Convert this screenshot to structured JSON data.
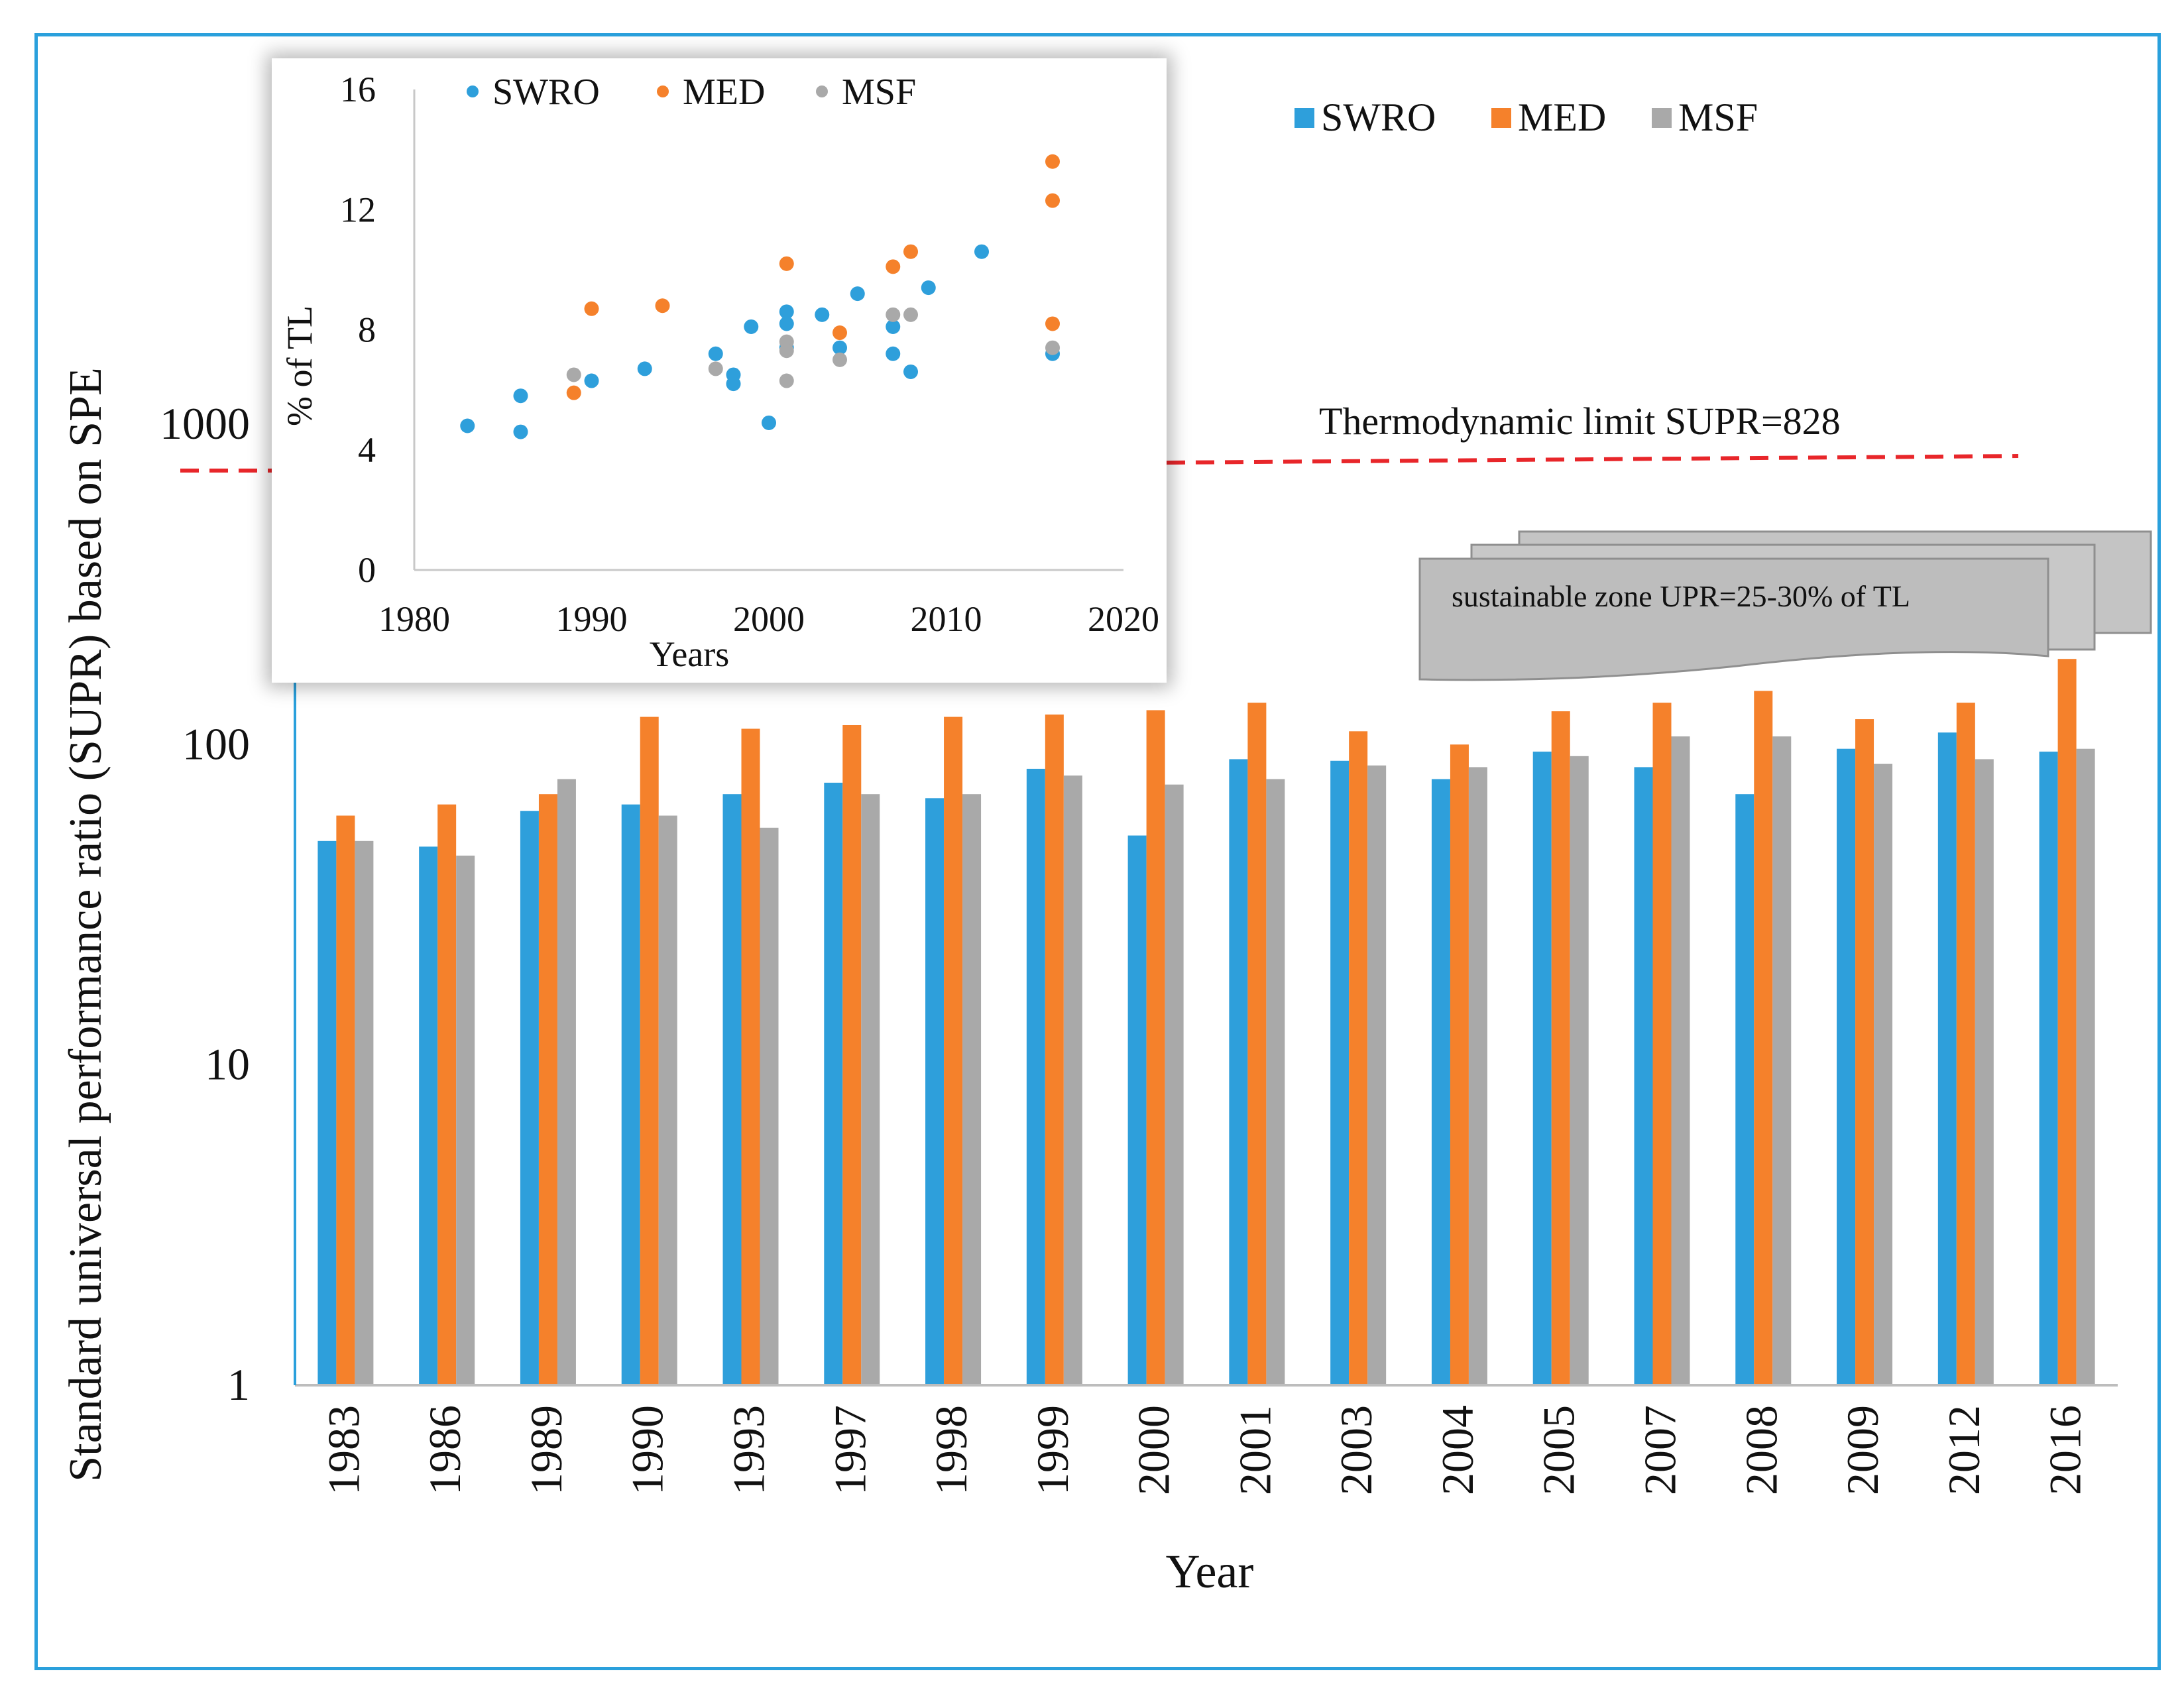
{
  "colors": {
    "swro": "#2e9fdb",
    "med": "#f5812b",
    "msf": "#a9a9a9",
    "frame": "#2aa0dc",
    "limit_line": "#e8262a",
    "callout_fill": "#bdbdbd"
  },
  "annotations": {
    "thermo_limit": "Thermodynamic limit SUPR=828",
    "sustainable_zone": "sustainable zone UPR=25-30% of TL"
  },
  "chart_data": [
    {
      "type": "bar",
      "scale": "log",
      "title": "",
      "xlabel": "Year",
      "ylabel": "Standard universal performance ratio (SUPR) based on SPE",
      "ylim": [
        1,
        1000
      ],
      "yticks": [
        {
          "value": 1,
          "label": "1"
        },
        {
          "value": 10,
          "label": "10"
        },
        {
          "value": 100,
          "label": "100"
        },
        {
          "value": 1000,
          "label": "1000"
        }
      ],
      "categories": [
        "1983",
        "1986",
        "1989",
        "1990",
        "1993",
        "1997",
        "1998",
        "1999",
        "2000",
        "2001",
        "2003",
        "2004",
        "2005",
        "2007",
        "2008",
        "2009",
        "2012",
        "2016"
      ],
      "series": [
        {
          "name": "SWRO",
          "values": [
            50,
            48,
            62,
            65,
            70,
            76,
            68,
            84,
            52,
            90,
            89,
            78,
            95,
            85,
            70,
            97,
            109,
            95
          ]
        },
        {
          "name": "MED",
          "values": [
            60,
            65,
            70,
            122,
            112,
            115,
            122,
            124,
            128,
            135,
            110,
            100,
            127,
            135,
            147,
            120,
            135,
            185
          ]
        },
        {
          "name": "MSF",
          "values": [
            50,
            45,
            78,
            60,
            55,
            70,
            70,
            80,
            75,
            78,
            86,
            85,
            92,
            106,
            106,
            87,
            90,
            97
          ]
        }
      ],
      "legend": [
        "SWRO",
        "MED",
        "MSF"
      ],
      "reference_line": {
        "label": "Thermodynamic limit SUPR=828",
        "value": 828
      }
    },
    {
      "type": "scatter",
      "title": "",
      "xlabel": "Years",
      "ylabel": "% of TL",
      "xlim": [
        1980,
        2020
      ],
      "ylim": [
        0,
        16
      ],
      "xticks": [
        {
          "value": 1980,
          "label": "1980"
        },
        {
          "value": 1990,
          "label": "1990"
        },
        {
          "value": 2000,
          "label": "2000"
        },
        {
          "value": 2010,
          "label": "2010"
        },
        {
          "value": 2020,
          "label": "2020"
        }
      ],
      "yticks": [
        {
          "value": 0,
          "label": "0"
        },
        {
          "value": 4,
          "label": "4"
        },
        {
          "value": 8,
          "label": "8"
        },
        {
          "value": 12,
          "label": "12"
        },
        {
          "value": 16,
          "label": "16"
        }
      ],
      "legend": [
        "SWRO",
        "MED",
        "MSF"
      ],
      "series": [
        {
          "name": "SWRO",
          "points": [
            [
              1983,
              4.8
            ],
            [
              1986,
              4.6
            ],
            [
              1986,
              5.8
            ],
            [
              1990,
              6.3
            ],
            [
              1993,
              6.7
            ],
            [
              1997,
              7.2
            ],
            [
              1998,
              6.5
            ],
            [
              1998,
              6.2
            ],
            [
              1999,
              8.1
            ],
            [
              2000,
              4.9
            ],
            [
              2001,
              8.6
            ],
            [
              2001,
              8.2
            ],
            [
              2001,
              7.4
            ],
            [
              2003,
              8.5
            ],
            [
              2004,
              7.4
            ],
            [
              2005,
              9.2
            ],
            [
              2007,
              8.1
            ],
            [
              2007,
              7.2
            ],
            [
              2008,
              6.6
            ],
            [
              2009,
              9.4
            ],
            [
              2012,
              10.6
            ],
            [
              2016,
              7.2
            ]
          ]
        },
        {
          "name": "MED",
          "points": [
            [
              1989,
              5.9
            ],
            [
              1990,
              8.7
            ],
            [
              1994,
              8.8
            ],
            [
              2001,
              10.2
            ],
            [
              2004,
              7.9
            ],
            [
              2007,
              10.1
            ],
            [
              2008,
              10.6
            ],
            [
              2016,
              13.6
            ],
            [
              2016,
              12.3
            ],
            [
              2016,
              8.2
            ]
          ]
        },
        {
          "name": "MSF",
          "points": [
            [
              1989,
              6.5
            ],
            [
              1997,
              6.7
            ],
            [
              2001,
              7.6
            ],
            [
              2001,
              7.3
            ],
            [
              2001,
              6.3
            ],
            [
              2004,
              7.0
            ],
            [
              2007,
              8.5
            ],
            [
              2008,
              8.5
            ],
            [
              2016,
              7.4
            ]
          ]
        }
      ]
    }
  ]
}
